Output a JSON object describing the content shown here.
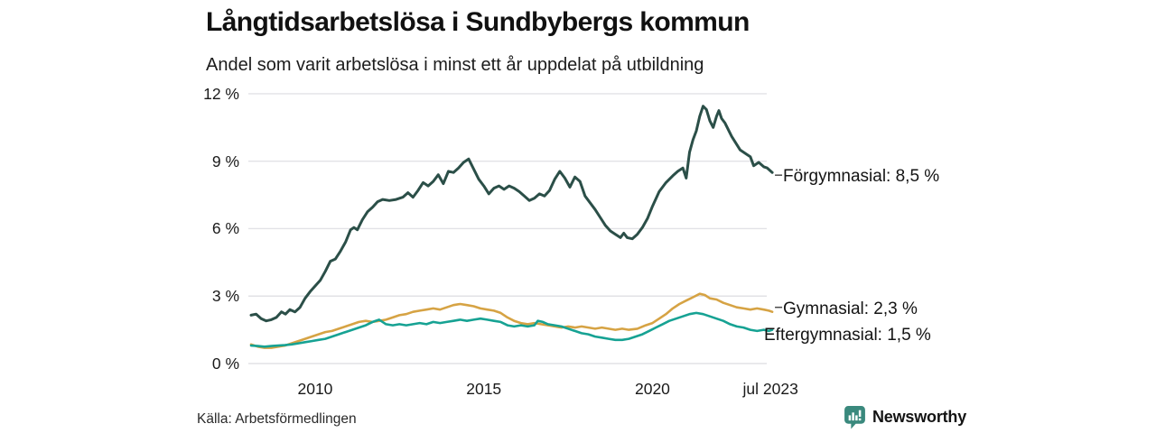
{
  "brand": {
    "name": "Newsworthy",
    "color": "#3a897d"
  },
  "chart_data": {
    "type": "line",
    "title": "Långtidsarbetslösa i Sundbybergs kommun",
    "subtitle": "Andel som varit arbetslösa i minst ett år uppdelat på utbildning",
    "source": "Källa: Arbetsförmedlingen",
    "grid": "horizontal",
    "grid_color": "#e2e2e6",
    "legend_position": "end-of-line-labels",
    "x_range": [
      2008.1,
      2023.55
    ],
    "ylim": [
      0,
      12
    ],
    "y_axis": {
      "unit": "%",
      "ticks": [
        {
          "label": "0 %",
          "value": 0
        },
        {
          "label": "3 %",
          "value": 3
        },
        {
          "label": "6 %",
          "value": 6
        },
        {
          "label": "9 %",
          "value": 9
        },
        {
          "label": "12 %",
          "value": 12
        }
      ]
    },
    "x_axis": {
      "ticks": [
        {
          "label": "2010",
          "value": 2010
        },
        {
          "label": "2015",
          "value": 2015
        },
        {
          "label": "2020",
          "value": 2020
        },
        {
          "label": "jul 2023",
          "value": 2023.5
        }
      ]
    },
    "series": [
      {
        "name": "Förgymnasial",
        "end_label": "Förgymnasial: 8,5 %",
        "end_value_text": "8,5 %",
        "color": "#2b4f48",
        "connector_dash": true,
        "points": [
          [
            2008.1,
            2.15
          ],
          [
            2008.25,
            2.2
          ],
          [
            2008.4,
            2.0
          ],
          [
            2008.55,
            1.9
          ],
          [
            2008.7,
            1.95
          ],
          [
            2008.85,
            2.05
          ],
          [
            2009.0,
            2.3
          ],
          [
            2009.12,
            2.2
          ],
          [
            2009.25,
            2.4
          ],
          [
            2009.4,
            2.3
          ],
          [
            2009.55,
            2.5
          ],
          [
            2009.7,
            2.9
          ],
          [
            2009.85,
            3.2
          ],
          [
            2010.0,
            3.45
          ],
          [
            2010.15,
            3.7
          ],
          [
            2010.3,
            4.1
          ],
          [
            2010.45,
            4.55
          ],
          [
            2010.6,
            4.65
          ],
          [
            2010.75,
            5.0
          ],
          [
            2010.9,
            5.4
          ],
          [
            2011.05,
            5.95
          ],
          [
            2011.15,
            6.05
          ],
          [
            2011.25,
            5.95
          ],
          [
            2011.4,
            6.4
          ],
          [
            2011.55,
            6.75
          ],
          [
            2011.7,
            6.95
          ],
          [
            2011.85,
            7.2
          ],
          [
            2012.0,
            7.3
          ],
          [
            2012.2,
            7.25
          ],
          [
            2012.4,
            7.3
          ],
          [
            2012.6,
            7.4
          ],
          [
            2012.75,
            7.6
          ],
          [
            2012.9,
            7.4
          ],
          [
            2013.05,
            7.7
          ],
          [
            2013.2,
            8.05
          ],
          [
            2013.35,
            7.9
          ],
          [
            2013.5,
            8.1
          ],
          [
            2013.65,
            8.4
          ],
          [
            2013.8,
            8.0
          ],
          [
            2013.95,
            8.55
          ],
          [
            2014.1,
            8.5
          ],
          [
            2014.25,
            8.7
          ],
          [
            2014.4,
            8.95
          ],
          [
            2014.55,
            9.1
          ],
          [
            2014.7,
            8.65
          ],
          [
            2014.85,
            8.2
          ],
          [
            2015.0,
            7.9
          ],
          [
            2015.15,
            7.55
          ],
          [
            2015.3,
            7.8
          ],
          [
            2015.45,
            7.9
          ],
          [
            2015.6,
            7.75
          ],
          [
            2015.75,
            7.9
          ],
          [
            2015.9,
            7.8
          ],
          [
            2016.05,
            7.65
          ],
          [
            2016.2,
            7.45
          ],
          [
            2016.35,
            7.25
          ],
          [
            2016.5,
            7.35
          ],
          [
            2016.65,
            7.55
          ],
          [
            2016.8,
            7.45
          ],
          [
            2016.95,
            7.7
          ],
          [
            2017.1,
            8.2
          ],
          [
            2017.25,
            8.55
          ],
          [
            2017.4,
            8.25
          ],
          [
            2017.55,
            7.85
          ],
          [
            2017.7,
            8.3
          ],
          [
            2017.85,
            8.1
          ],
          [
            2018.0,
            7.45
          ],
          [
            2018.15,
            7.15
          ],
          [
            2018.3,
            6.85
          ],
          [
            2018.45,
            6.5
          ],
          [
            2018.6,
            6.15
          ],
          [
            2018.75,
            5.9
          ],
          [
            2018.9,
            5.75
          ],
          [
            2019.05,
            5.6
          ],
          [
            2019.15,
            5.8
          ],
          [
            2019.25,
            5.6
          ],
          [
            2019.4,
            5.55
          ],
          [
            2019.55,
            5.75
          ],
          [
            2019.7,
            6.05
          ],
          [
            2019.85,
            6.45
          ],
          [
            2020.0,
            7.0
          ],
          [
            2020.2,
            7.65
          ],
          [
            2020.4,
            8.05
          ],
          [
            2020.6,
            8.35
          ],
          [
            2020.75,
            8.55
          ],
          [
            2020.9,
            8.7
          ],
          [
            2021.0,
            8.25
          ],
          [
            2021.1,
            9.4
          ],
          [
            2021.2,
            9.95
          ],
          [
            2021.3,
            10.35
          ],
          [
            2021.4,
            11.0
          ],
          [
            2021.5,
            11.45
          ],
          [
            2021.6,
            11.3
          ],
          [
            2021.7,
            10.8
          ],
          [
            2021.8,
            10.5
          ],
          [
            2021.9,
            11.0
          ],
          [
            2021.97,
            11.25
          ],
          [
            2022.05,
            10.9
          ],
          [
            2022.15,
            10.7
          ],
          [
            2022.35,
            10.1
          ],
          [
            2022.6,
            9.5
          ],
          [
            2022.8,
            9.3
          ],
          [
            2022.9,
            9.2
          ],
          [
            2023.0,
            8.8
          ],
          [
            2023.15,
            8.95
          ],
          [
            2023.3,
            8.75
          ],
          [
            2023.4,
            8.7
          ],
          [
            2023.55,
            8.5
          ]
        ]
      },
      {
        "name": "Gymnasial",
        "end_label": "Gymnasial: 2,3 %",
        "end_value_text": "2,3 %",
        "color": "#d6a344",
        "connector_dash": true,
        "points": [
          [
            2008.1,
            0.85
          ],
          [
            2008.3,
            0.75
          ],
          [
            2008.5,
            0.7
          ],
          [
            2008.7,
            0.7
          ],
          [
            2008.9,
            0.75
          ],
          [
            2009.1,
            0.8
          ],
          [
            2009.3,
            0.9
          ],
          [
            2009.5,
            1.0
          ],
          [
            2009.7,
            1.1
          ],
          [
            2009.9,
            1.2
          ],
          [
            2010.1,
            1.3
          ],
          [
            2010.3,
            1.4
          ],
          [
            2010.5,
            1.45
          ],
          [
            2010.7,
            1.55
          ],
          [
            2010.9,
            1.65
          ],
          [
            2011.1,
            1.75
          ],
          [
            2011.3,
            1.85
          ],
          [
            2011.5,
            1.9
          ],
          [
            2011.7,
            1.85
          ],
          [
            2011.9,
            1.9
          ],
          [
            2012.1,
            1.95
          ],
          [
            2012.3,
            2.05
          ],
          [
            2012.5,
            2.15
          ],
          [
            2012.7,
            2.2
          ],
          [
            2012.9,
            2.3
          ],
          [
            2013.1,
            2.35
          ],
          [
            2013.3,
            2.4
          ],
          [
            2013.5,
            2.45
          ],
          [
            2013.7,
            2.4
          ],
          [
            2013.9,
            2.5
          ],
          [
            2014.1,
            2.6
          ],
          [
            2014.3,
            2.65
          ],
          [
            2014.5,
            2.6
          ],
          [
            2014.7,
            2.55
          ],
          [
            2014.9,
            2.45
          ],
          [
            2015.1,
            2.4
          ],
          [
            2015.3,
            2.35
          ],
          [
            2015.5,
            2.25
          ],
          [
            2015.7,
            2.05
          ],
          [
            2015.9,
            1.9
          ],
          [
            2016.1,
            1.8
          ],
          [
            2016.3,
            1.75
          ],
          [
            2016.5,
            1.8
          ],
          [
            2016.7,
            1.75
          ],
          [
            2016.9,
            1.7
          ],
          [
            2017.1,
            1.65
          ],
          [
            2017.3,
            1.6
          ],
          [
            2017.5,
            1.65
          ],
          [
            2017.7,
            1.6
          ],
          [
            2017.9,
            1.65
          ],
          [
            2018.1,
            1.6
          ],
          [
            2018.3,
            1.55
          ],
          [
            2018.5,
            1.6
          ],
          [
            2018.7,
            1.55
          ],
          [
            2018.9,
            1.5
          ],
          [
            2019.1,
            1.55
          ],
          [
            2019.3,
            1.5
          ],
          [
            2019.55,
            1.55
          ],
          [
            2019.8,
            1.7
          ],
          [
            2020.0,
            1.8
          ],
          [
            2020.2,
            2.0
          ],
          [
            2020.4,
            2.2
          ],
          [
            2020.6,
            2.45
          ],
          [
            2020.8,
            2.65
          ],
          [
            2021.0,
            2.8
          ],
          [
            2021.2,
            2.95
          ],
          [
            2021.4,
            3.1
          ],
          [
            2021.55,
            3.05
          ],
          [
            2021.7,
            2.9
          ],
          [
            2021.9,
            2.85
          ],
          [
            2022.1,
            2.7
          ],
          [
            2022.3,
            2.6
          ],
          [
            2022.5,
            2.5
          ],
          [
            2022.7,
            2.45
          ],
          [
            2022.9,
            2.4
          ],
          [
            2023.1,
            2.45
          ],
          [
            2023.3,
            2.4
          ],
          [
            2023.45,
            2.35
          ],
          [
            2023.55,
            2.3
          ]
        ]
      },
      {
        "name": "Eftergymnasial",
        "end_label": "Eftergymnasial: 1,5 %",
        "end_value_text": "1,5 %",
        "color": "#16a293",
        "connector_dash": false,
        "points": [
          [
            2008.1,
            0.8
          ],
          [
            2008.3,
            0.78
          ],
          [
            2008.5,
            0.75
          ],
          [
            2008.7,
            0.78
          ],
          [
            2008.9,
            0.8
          ],
          [
            2009.1,
            0.82
          ],
          [
            2009.3,
            0.85
          ],
          [
            2009.5,
            0.9
          ],
          [
            2009.7,
            0.95
          ],
          [
            2009.9,
            1.0
          ],
          [
            2010.1,
            1.05
          ],
          [
            2010.3,
            1.1
          ],
          [
            2010.5,
            1.2
          ],
          [
            2010.7,
            1.3
          ],
          [
            2010.9,
            1.4
          ],
          [
            2011.1,
            1.5
          ],
          [
            2011.3,
            1.6
          ],
          [
            2011.5,
            1.7
          ],
          [
            2011.7,
            1.85
          ],
          [
            2011.9,
            1.95
          ],
          [
            2012.1,
            1.75
          ],
          [
            2012.3,
            1.7
          ],
          [
            2012.5,
            1.75
          ],
          [
            2012.7,
            1.7
          ],
          [
            2012.9,
            1.75
          ],
          [
            2013.1,
            1.8
          ],
          [
            2013.3,
            1.75
          ],
          [
            2013.5,
            1.85
          ],
          [
            2013.7,
            1.8
          ],
          [
            2013.9,
            1.85
          ],
          [
            2014.1,
            1.9
          ],
          [
            2014.3,
            1.95
          ],
          [
            2014.5,
            1.9
          ],
          [
            2014.7,
            1.95
          ],
          [
            2014.9,
            2.0
          ],
          [
            2015.1,
            1.95
          ],
          [
            2015.3,
            1.9
          ],
          [
            2015.5,
            1.85
          ],
          [
            2015.7,
            1.7
          ],
          [
            2015.9,
            1.65
          ],
          [
            2016.1,
            1.7
          ],
          [
            2016.3,
            1.65
          ],
          [
            2016.5,
            1.7
          ],
          [
            2016.6,
            1.9
          ],
          [
            2016.75,
            1.85
          ],
          [
            2016.9,
            1.75
          ],
          [
            2017.1,
            1.7
          ],
          [
            2017.3,
            1.65
          ],
          [
            2017.5,
            1.55
          ],
          [
            2017.7,
            1.45
          ],
          [
            2017.9,
            1.35
          ],
          [
            2018.1,
            1.3
          ],
          [
            2018.3,
            1.2
          ],
          [
            2018.5,
            1.15
          ],
          [
            2018.7,
            1.1
          ],
          [
            2018.9,
            1.05
          ],
          [
            2019.1,
            1.05
          ],
          [
            2019.3,
            1.1
          ],
          [
            2019.5,
            1.2
          ],
          [
            2019.7,
            1.3
          ],
          [
            2019.9,
            1.45
          ],
          [
            2020.1,
            1.6
          ],
          [
            2020.3,
            1.75
          ],
          [
            2020.5,
            1.9
          ],
          [
            2020.7,
            2.0
          ],
          [
            2020.9,
            2.1
          ],
          [
            2021.1,
            2.2
          ],
          [
            2021.3,
            2.25
          ],
          [
            2021.5,
            2.2
          ],
          [
            2021.7,
            2.1
          ],
          [
            2021.9,
            2.0
          ],
          [
            2022.1,
            1.9
          ],
          [
            2022.3,
            1.75
          ],
          [
            2022.5,
            1.65
          ],
          [
            2022.7,
            1.6
          ],
          [
            2022.9,
            1.5
          ],
          [
            2023.1,
            1.45
          ],
          [
            2023.3,
            1.5
          ],
          [
            2023.45,
            1.45
          ],
          [
            2023.55,
            1.5
          ]
        ]
      }
    ]
  }
}
